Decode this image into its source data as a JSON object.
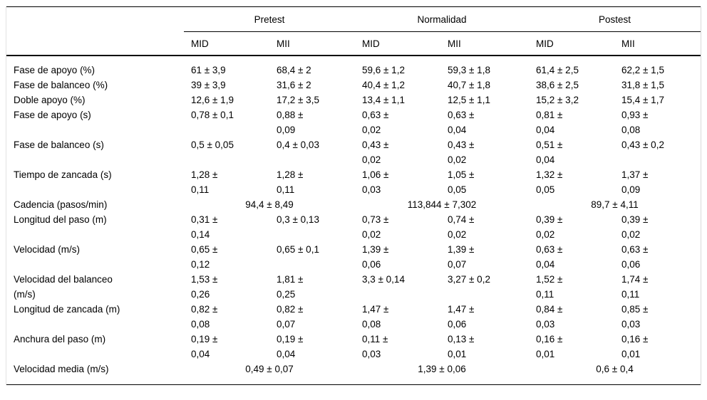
{
  "table": {
    "groups": [
      {
        "label": "Pretest"
      },
      {
        "label": "Normalidad"
      },
      {
        "label": "Postest"
      }
    ],
    "sub_headers": [
      "MID",
      "MII",
      "MID",
      "MII",
      "MID",
      "MII"
    ],
    "rows": [
      {
        "label": "Fase de apoyo (%)",
        "cells": [
          "61 ± 3,9",
          "68,4 ± 2",
          "59,6 ± 1,2",
          "59,3 ± 1,8",
          "61,4 ± 2,5",
          "62,2 ± 1,5"
        ]
      },
      {
        "label": "Fase de balanceo (%)",
        "cells": [
          "39 ± 3,9",
          "31,6 ± 2",
          "40,4 ± 1,2",
          "40,7 ± 1,8",
          "38,6 ± 2,5",
          "31,8 ± 1,5"
        ]
      },
      {
        "label": "Doble apoyo (%)",
        "cells": [
          "12,6 ± 1,9",
          "17,2 ± 3,5",
          "13,4 ± 1,1",
          "12,5 ± 1,1",
          "15,2 ± 3,2",
          "15,4 ± 1,7"
        ]
      },
      {
        "label": "Fase de apoyo (s)",
        "cells": [
          "0,78 ± 0,1",
          "0,88 ±\n0,09",
          "0,63 ±\n0,02",
          "0,63 ±\n0,04",
          "0,81 ±\n0,04",
          "0,93 ±\n0,08"
        ]
      },
      {
        "label": "Fase de balanceo (s)",
        "cells": [
          "0,5 ± 0,05",
          "0,4 ± 0,03",
          "0,43 ±\n0,02",
          "0,43 ±\n0,02",
          "0,51 ±\n0,04",
          "0,43 ± 0,2"
        ]
      },
      {
        "label": "Tiempo de zancada (s)",
        "cells": [
          "1,28 ±\n0,11",
          "1,28 ±\n0,11",
          "1,06 ±\n0,03",
          "1,05 ±\n0,05",
          "1,32 ±\n0,05",
          "1,37 ±\n0,09"
        ]
      },
      {
        "label": "Cadencia (pasos/min)",
        "cells": [
          "94,4 ± 8,49",
          "113,844 ± 7,302",
          "89,7 ± 4,11"
        ]
      },
      {
        "label": "Longitud del paso (m)",
        "cells": [
          "0,31 ±\n0,14",
          "0,3 ± 0,13",
          "0,73 ±\n0,02",
          "0,74 ±\n0,02",
          "0,39 ±\n0,02",
          "0,39 ±\n0,02"
        ]
      },
      {
        "label": "Velocidad (m/s)",
        "cells": [
          "0,65 ±\n0,12",
          "0,65 ± 0,1",
          "1,39 ±\n0,06",
          "1,39 ±\n0,07",
          "0,63 ±\n0,04",
          "0,63 ±\n0,06"
        ]
      },
      {
        "label": "Velocidad del balanceo\n(m/s)",
        "cells": [
          "1,53 ±\n0,26",
          "1,81 ±\n0,25",
          "3,3 ± 0,14",
          "3,27 ± 0,2",
          "1,52 ±\n0,11",
          "1,74 ±\n0,11"
        ]
      },
      {
        "label": "Longitud de zancada (m)",
        "cells": [
          "0,82 ±\n0,08",
          "0,82 ±\n0,07",
          "1,47 ±\n0,08",
          "1,47 ±\n0,06",
          "0,84 ±\n0,03",
          "0,85 ±\n0,03"
        ]
      },
      {
        "label": "Anchura del paso (m)",
        "cells": [
          "0,19 ±\n0,04",
          "0,19 ±\n0,04",
          "0,11 ±\n0,03",
          "0,13 ±\n0,01",
          "0,16 ±\n0,01",
          "0,16 ±\n0,01"
        ]
      },
      {
        "label": "Velocidad media (m/s)",
        "cells": [
          "0,49 ± 0,07",
          "1,39 ± 0,06",
          "0,6 ± 0,4"
        ]
      }
    ]
  }
}
